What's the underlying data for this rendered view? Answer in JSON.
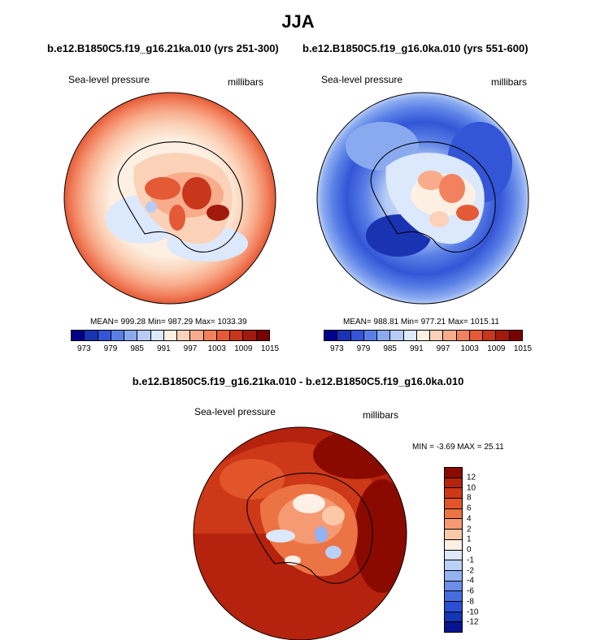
{
  "title": "JJA",
  "panels": [
    {
      "case": "b.e12.B1850C5.f19_g16.21ka.010 (yrs 251-300)",
      "field": "Sea-level pressure",
      "units": "millibars",
      "stats": "MEAN= 999.28   Min= 987.29   Max= 1033.39",
      "map_style": "warm"
    },
    {
      "case": "b.e12.B1850C5.f19_g16.0ka.010 (yrs 551-600)",
      "field": "Sea-level pressure",
      "units": "millibars",
      "stats": "MEAN= 988.81   Min= 977.21   Max= 1015.11",
      "map_style": "cool"
    }
  ],
  "colorbar": {
    "colors": [
      "#00008b",
      "#1a33b3",
      "#3355d6",
      "#5a7fe6",
      "#8aaaf0",
      "#b6ccf7",
      "#dce8fb",
      "#fdf0e2",
      "#fbd2b8",
      "#f8ac8c",
      "#f2815e",
      "#e45a36",
      "#c8361c",
      "#a21a0c",
      "#7a0000"
    ],
    "tick_labels": [
      "973",
      "979",
      "985",
      "991",
      "997",
      "1003",
      "1009",
      "1015"
    ]
  },
  "difference": {
    "title": "b.e12.B1850C5.f19_g16.21ka.010 - b.e12.B1850C5.f19_g16.0ka.010",
    "field": "Sea-level pressure",
    "units": "millibars",
    "stats": "MIN =  -3.69 MAX =  25.11",
    "colors": [
      "#8b0a00",
      "#b5220d",
      "#cc3818",
      "#e2552a",
      "#ec7343",
      "#f59a72",
      "#fbc9a8",
      "#fdf0e6",
      "#dce8fb",
      "#b9d0f7",
      "#92b2f1",
      "#6a8fe9",
      "#456de0",
      "#2a4fd4",
      "#1535b5",
      "#06158f"
    ],
    "tick_labels": [
      "12",
      "10",
      "8",
      "6",
      "4",
      "2",
      "1",
      "0",
      "-1",
      "-2",
      "-4",
      "-6",
      "-8",
      "-10",
      "-12"
    ]
  }
}
